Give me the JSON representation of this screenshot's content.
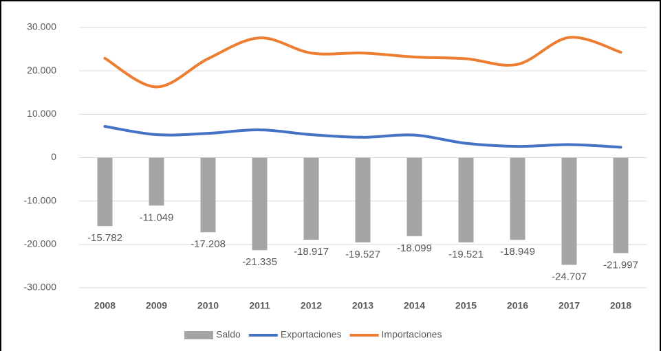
{
  "chart_data": {
    "type": "bar",
    "categories": [
      "2008",
      "2009",
      "2010",
      "2011",
      "2012",
      "2013",
      "2014",
      "2015",
      "2016",
      "2017",
      "2018"
    ],
    "series": [
      {
        "name": "Saldo",
        "type": "bar",
        "color": "#a5a5a5",
        "values": [
          -15782,
          -11049,
          -17208,
          -21335,
          -18917,
          -19527,
          -18099,
          -19521,
          -18949,
          -24707,
          -21997
        ],
        "value_labels": [
          "-15.782",
          "-11.049",
          "-17.208",
          "-21.335",
          "-18.917",
          "-19.527",
          "-18.099",
          "-19.521",
          "-18.949",
          "-24.707",
          "-21.997"
        ]
      },
      {
        "name": "Exportaciones",
        "type": "line",
        "color": "#4472c4",
        "values": [
          7200,
          5300,
          5600,
          6400,
          5300,
          4700,
          5200,
          3300,
          2600,
          3000,
          2400
        ]
      },
      {
        "name": "Importaciones",
        "type": "line",
        "color": "#ed7d31",
        "values": [
          22900,
          16300,
          22800,
          27600,
          24100,
          24100,
          23200,
          22800,
          21500,
          27700,
          24300
        ]
      }
    ],
    "ylim": [
      -30000,
      30000
    ],
    "yticks": [
      {
        "value": -30000,
        "label": "-30.000"
      },
      {
        "value": -20000,
        "label": "-20.000"
      },
      {
        "value": -10000,
        "label": "-10.000"
      },
      0,
      {
        "value": 10000,
        "label": "10.000"
      },
      {
        "value": 20000,
        "label": "20.000"
      },
      {
        "value": 30000,
        "label": "30.000"
      }
    ],
    "grid": true,
    "legend": "bottom"
  }
}
